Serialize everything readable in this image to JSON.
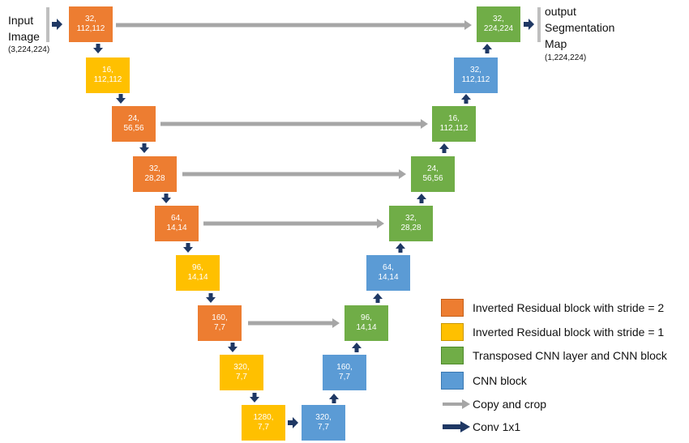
{
  "colors": {
    "orange": "#ED7D31",
    "yellow": "#FFC000",
    "green": "#70AD47",
    "blue": "#5B9BD5",
    "copy_arrow": "#A6A6A6",
    "conv_arrow": "#1F3864"
  },
  "input_label": {
    "line1": "Input",
    "line2": "Image",
    "shape": "(3,224,224)"
  },
  "output_label": {
    "line1": "output",
    "line2": "Segmentation",
    "line3": "Map",
    "shape": "(1,224,224)"
  },
  "blocks": {
    "enc1": {
      "channels": "32,",
      "size": "112,112"
    },
    "enc2": {
      "channels": "16,",
      "size": "112,112"
    },
    "enc3": {
      "channels": "24,",
      "size": "56,56"
    },
    "enc4": {
      "channels": "32,",
      "size": "28,28"
    },
    "enc5": {
      "channels": "64,",
      "size": "14,14"
    },
    "enc6": {
      "channels": "96,",
      "size": "14,14"
    },
    "enc7": {
      "channels": "160,",
      "size": "7,7"
    },
    "enc8": {
      "channels": "320,",
      "size": "7,7"
    },
    "enc9": {
      "channels": "1280,",
      "size": "7,7"
    },
    "dec1": {
      "channels": "320,",
      "size": "7,7"
    },
    "dec2": {
      "channels": "160,",
      "size": "7,7"
    },
    "dec3": {
      "channels": "96,",
      "size": "14,14"
    },
    "dec4": {
      "channels": "64,",
      "size": "14,14"
    },
    "dec5": {
      "channels": "32,",
      "size": "28,28"
    },
    "dec6": {
      "channels": "24,",
      "size": "56,56"
    },
    "dec7": {
      "channels": "16,",
      "size": "112,112"
    },
    "dec8": {
      "channels": "32,",
      "size": "112,112"
    },
    "dec9": {
      "channels": "32,",
      "size": "224,224"
    }
  },
  "legend": {
    "orange": "Inverted Residual block with stride = 2",
    "yellow": "Inverted Residual block with stride = 1",
    "green": "Transposed CNN layer and CNN block",
    "blue": "CNN block",
    "copy": "Copy and crop",
    "conv": "Conv 1x1"
  }
}
